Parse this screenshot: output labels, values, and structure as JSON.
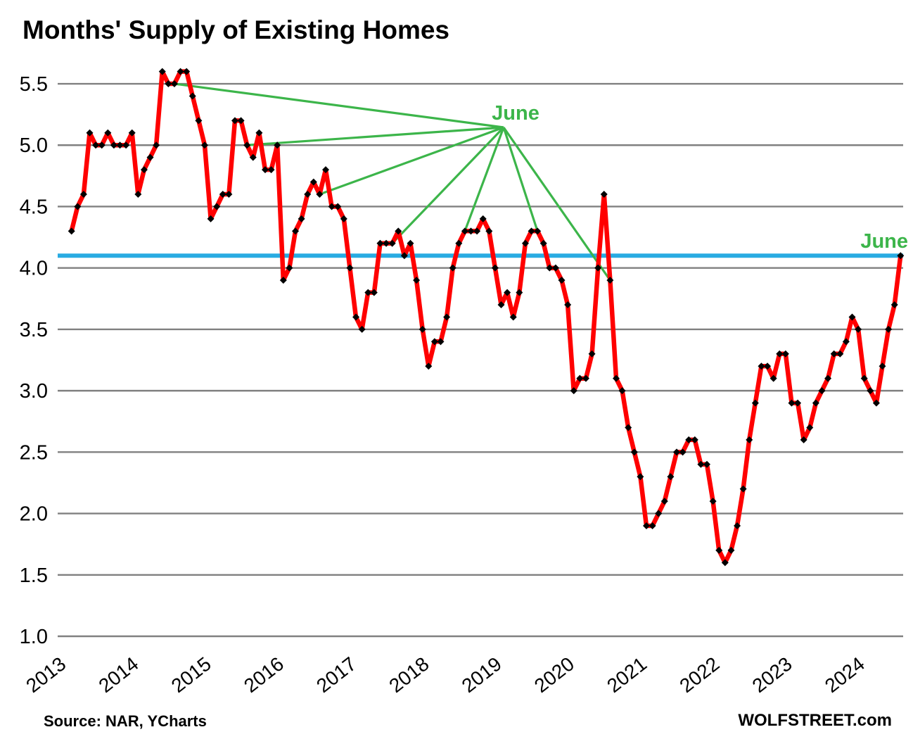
{
  "title": "Months' Supply of Existing Homes",
  "source": "Source: NAR, YCharts",
  "branding": "WOLFSTREET.com",
  "annotations": {
    "callout_label": "June",
    "reference_label": "June"
  },
  "colors": {
    "series_line": "#FF0000",
    "marker": "#000000",
    "reference_line": "#29ABE2",
    "annotation_green": "#3CB54A",
    "gridline": "#808080",
    "text": "#000000"
  },
  "chart_data": {
    "type": "line",
    "title": "Months' Supply of Existing Homes",
    "x_start": "Jan 2013",
    "x_end": "Jun 2024",
    "xticks": [
      "2013",
      "2014",
      "2015",
      "2016",
      "2017",
      "2018",
      "2019",
      "2020",
      "2021",
      "2022",
      "2023",
      "2024"
    ],
    "yticks": [
      "5.5",
      "5.0",
      "4.5",
      "4.0",
      "3.5",
      "3.0",
      "2.5",
      "2.0",
      "1.5",
      "1.0"
    ],
    "ylim": [
      1.0,
      5.75
    ],
    "grid": "horizontal",
    "series": [
      {
        "year": 2013,
        "values": [
          4.3,
          4.5,
          4.6,
          5.1,
          5.0,
          5.0,
          5.1,
          5.0,
          5.0,
          5.0,
          5.1,
          4.6
        ]
      },
      {
        "year": 2014,
        "values": [
          4.8,
          4.9,
          5.0,
          5.6,
          5.5,
          5.5,
          5.6,
          5.6,
          5.4,
          5.2,
          5.0,
          4.4
        ]
      },
      {
        "year": 2015,
        "values": [
          4.5,
          4.6,
          4.6,
          5.2,
          5.2,
          5.0,
          4.9,
          5.1,
          4.8,
          4.8,
          5.0,
          3.9
        ]
      },
      {
        "year": 2016,
        "values": [
          4.0,
          4.3,
          4.4,
          4.6,
          4.7,
          4.6,
          4.8,
          4.5,
          4.5,
          4.4,
          4.0,
          3.6
        ]
      },
      {
        "year": 2017,
        "values": [
          3.5,
          3.8,
          3.8,
          4.2,
          4.2,
          4.2,
          4.3,
          4.1,
          4.2,
          3.9,
          3.5,
          3.2
        ]
      },
      {
        "year": 2018,
        "values": [
          3.4,
          3.4,
          3.6,
          4.0,
          4.2,
          4.3,
          4.3,
          4.3,
          4.4,
          4.3,
          4.0,
          3.7
        ]
      },
      {
        "year": 2019,
        "values": [
          3.8,
          3.6,
          3.8,
          4.2,
          4.3,
          4.3,
          4.2,
          4.0,
          4.0,
          3.9,
          3.7,
          3.0
        ]
      },
      {
        "year": 2020,
        "values": [
          3.1,
          3.1,
          3.3,
          4.0,
          4.6,
          3.9,
          3.1,
          3.0,
          2.7,
          2.5,
          2.3,
          1.9
        ]
      },
      {
        "year": 2021,
        "values": [
          1.9,
          2.0,
          2.1,
          2.3,
          2.5,
          2.5,
          2.6,
          2.6,
          2.4,
          2.4,
          2.1,
          1.7
        ]
      },
      {
        "year": 2022,
        "values": [
          1.6,
          1.7,
          1.9,
          2.2,
          2.6,
          2.9,
          3.2,
          3.2,
          3.1,
          3.3,
          3.3,
          2.9
        ]
      },
      {
        "year": 2023,
        "values": [
          2.9,
          2.6,
          2.7,
          2.9,
          3.0,
          3.1,
          3.3,
          3.3,
          3.4,
          3.6,
          3.5,
          3.1
        ]
      },
      {
        "year": 2024,
        "values": [
          3.0,
          2.9,
          3.2,
          3.5,
          3.7,
          4.1
        ]
      }
    ],
    "reference_line": {
      "value": 4.1,
      "label": "June",
      "meaning": "June 2024 level"
    },
    "june_callouts": [
      {
        "year": 2014,
        "value": 5.5
      },
      {
        "year": 2015,
        "value": 5.0
      },
      {
        "year": 2016,
        "value": 4.6
      },
      {
        "year": 2017,
        "value": 4.2
      },
      {
        "year": 2018,
        "value": 4.3
      },
      {
        "year": 2019,
        "value": 4.3
      },
      {
        "year": 2020,
        "value": 3.9
      }
    ],
    "legend": "none"
  }
}
